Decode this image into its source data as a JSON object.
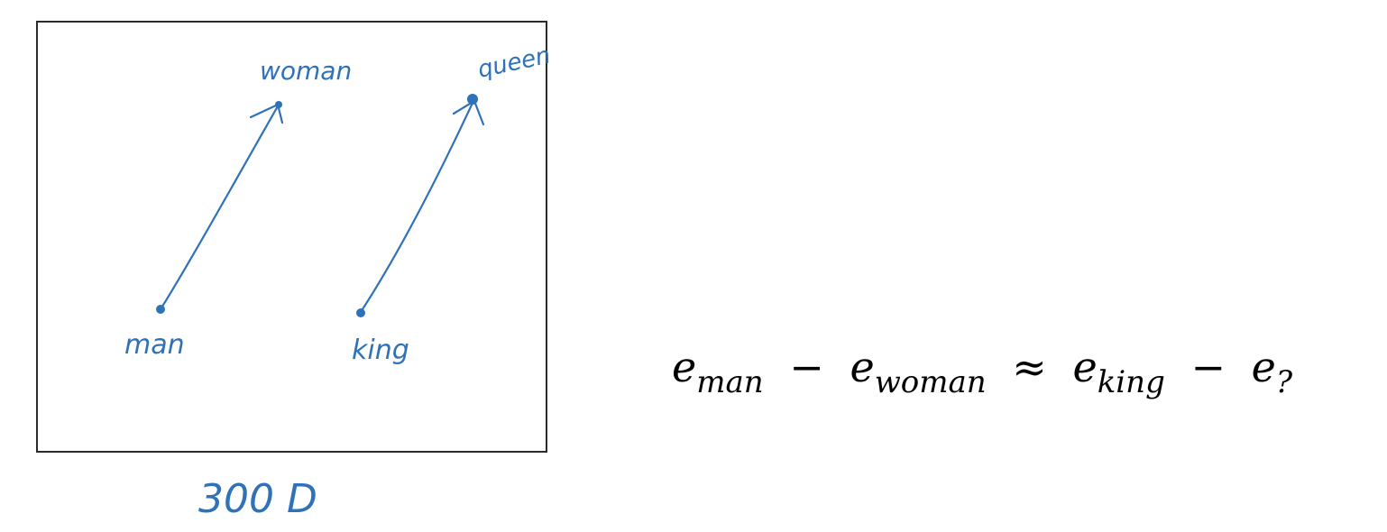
{
  "diagram": {
    "points": [
      {
        "id": "man",
        "label": "man"
      },
      {
        "id": "woman",
        "label": "woman"
      },
      {
        "id": "king",
        "label": "king"
      },
      {
        "id": "queen",
        "label": "queen"
      }
    ],
    "arrows": [
      {
        "from": "man",
        "to": "woman"
      },
      {
        "from": "king",
        "to": "queen"
      }
    ],
    "dimension_label": "300 D",
    "ink_color": "#2f72b8"
  },
  "equation": {
    "e1": "e",
    "s1": "man",
    "op1": "−",
    "e2": "e",
    "s2": "woman",
    "op2": "≈",
    "e3": "e",
    "s3": "king",
    "op3": "−",
    "e4": "e",
    "s4": "?"
  }
}
